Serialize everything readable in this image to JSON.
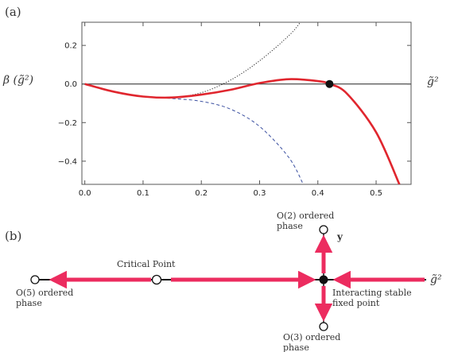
{
  "panel_a": {
    "label": "(a)",
    "ylabel": "β (g̃²)",
    "xlabel": "g̃²",
    "chart_data": {
      "type": "line",
      "xlim": [
        -0.005,
        0.56
      ],
      "ylim": [
        -0.52,
        0.32
      ],
      "x_ticks": [
        "0.0",
        "0.1",
        "0.2",
        "0.3",
        "0.4",
        "0.5"
      ],
      "y_ticks": [
        "−0.4",
        "−0.2",
        "0.0",
        "0.2"
      ],
      "x_tick_values": [
        0.0,
        0.1,
        0.2,
        0.3,
        0.4,
        0.5
      ],
      "y_tick_values": [
        -0.4,
        -0.2,
        0.0,
        0.2
      ],
      "grid": false,
      "series": [
        {
          "style": "solid",
          "color": "#e0262e",
          "x": [
            0.0,
            0.05,
            0.1,
            0.15,
            0.2,
            0.25,
            0.3,
            0.35,
            0.4,
            0.42,
            0.45,
            0.5,
            0.54
          ],
          "y": [
            0.0,
            -0.04,
            -0.065,
            -0.07,
            -0.055,
            -0.03,
            0.005,
            0.025,
            0.015,
            0.0,
            -0.05,
            -0.25,
            -0.52
          ]
        },
        {
          "style": "dotted",
          "color": "#222222",
          "x": [
            0.0,
            0.05,
            0.1,
            0.15,
            0.2,
            0.25,
            0.3,
            0.35,
            0.37
          ],
          "y": [
            0.0,
            -0.04,
            -0.065,
            -0.07,
            -0.045,
            0.02,
            0.12,
            0.25,
            0.32
          ]
        },
        {
          "style": "dashed",
          "color": "#3a4fa0",
          "x": [
            0.0,
            0.05,
            0.1,
            0.15,
            0.2,
            0.25,
            0.3,
            0.35,
            0.375
          ],
          "y": [
            0.0,
            -0.04,
            -0.065,
            -0.075,
            -0.09,
            -0.13,
            -0.22,
            -0.38,
            -0.52
          ]
        }
      ],
      "fixed_point": {
        "x": 0.42,
        "y": 0.0
      }
    }
  },
  "panel_b": {
    "label": "(b)",
    "axis_label": "g̃²",
    "y_label": "y",
    "critical_point": "Critical Point",
    "o5_line1": "O(5) ordered",
    "o5_line2": "phase",
    "o2_line1": "O(2) ordered",
    "o2_line2": "phase",
    "o3_line1": "O(3) ordered",
    "o3_line2": "phase",
    "fixed_line1": "Interacting stable",
    "fixed_line2": "fixed point",
    "arrow_color": "#ec2c5f"
  }
}
